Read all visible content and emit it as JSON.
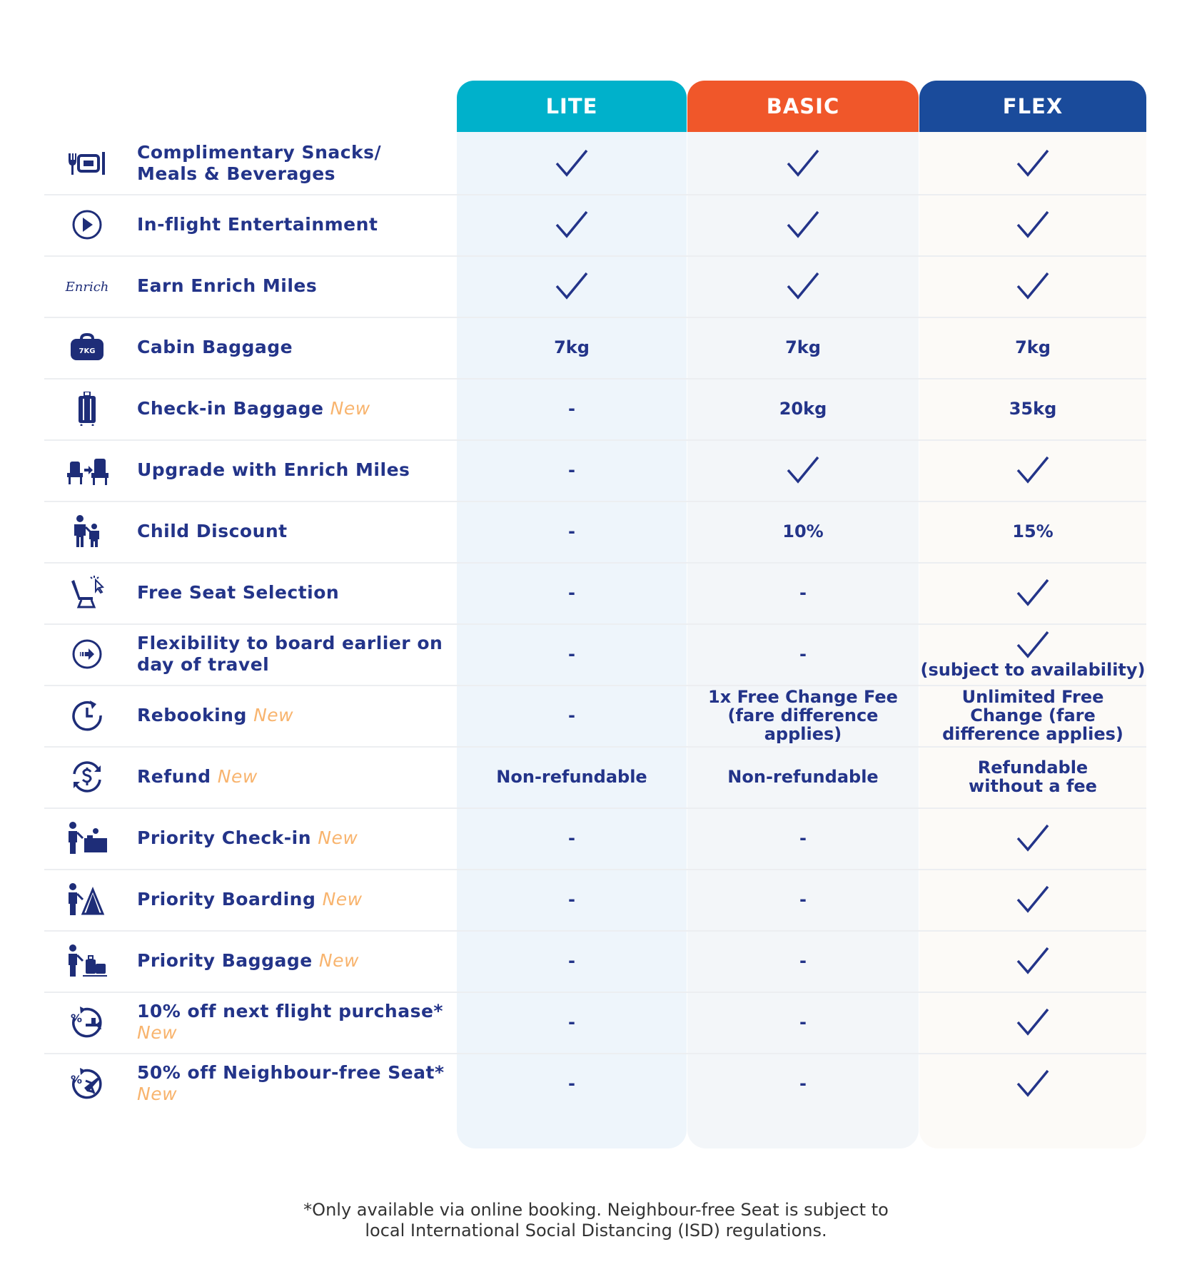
{
  "plans": [
    {
      "name": "LITE",
      "color": "#00b1cb"
    },
    {
      "name": "BASIC",
      "color": "#f0572a"
    },
    {
      "name": "FLEX",
      "color": "#1a4b9b"
    }
  ],
  "new_tag": "New",
  "rows": [
    {
      "icon": "meal-icon",
      "lines": [
        "Complimentary Snacks/",
        "Meals & Beverages"
      ],
      "is_new": false,
      "values": [
        {
          "type": "check"
        },
        {
          "type": "check"
        },
        {
          "type": "check"
        }
      ]
    },
    {
      "icon": "play-icon",
      "lines": [
        "In-flight Entertainment"
      ],
      "is_new": false,
      "values": [
        {
          "type": "check"
        },
        {
          "type": "check"
        },
        {
          "type": "check"
        }
      ]
    },
    {
      "icon": "enrich-logo",
      "logo_text": "Enrich",
      "lines": [
        "Earn Enrich Miles"
      ],
      "is_new": false,
      "values": [
        {
          "type": "check"
        },
        {
          "type": "check"
        },
        {
          "type": "check"
        }
      ]
    },
    {
      "icon": "cabin-bag-icon",
      "icon_text": "7KG",
      "lines": [
        "Cabin Baggage"
      ],
      "is_new": false,
      "values": [
        {
          "type": "text",
          "text": "7kg"
        },
        {
          "type": "text",
          "text": "7kg"
        },
        {
          "type": "text",
          "text": "7kg"
        }
      ]
    },
    {
      "icon": "suitcase-icon",
      "lines": [
        "Check-in Baggage"
      ],
      "is_new": true,
      "values": [
        {
          "type": "text",
          "text": "-"
        },
        {
          "type": "text",
          "text": "20kg"
        },
        {
          "type": "text",
          "text": "35kg"
        }
      ]
    },
    {
      "icon": "seat-upgrade-icon",
      "lines": [
        "Upgrade with Enrich Miles"
      ],
      "is_new": false,
      "values": [
        {
          "type": "text",
          "text": "-"
        },
        {
          "type": "check"
        },
        {
          "type": "check"
        }
      ]
    },
    {
      "icon": "family-icon",
      "lines": [
        "Child Discount"
      ],
      "is_new": false,
      "values": [
        {
          "type": "text",
          "text": "-"
        },
        {
          "type": "text",
          "text": "10%"
        },
        {
          "type": "text",
          "text": "15%"
        }
      ]
    },
    {
      "icon": "seat-select-icon",
      "lines": [
        "Free Seat Selection"
      ],
      "is_new": false,
      "values": [
        {
          "type": "text",
          "text": "-"
        },
        {
          "type": "text",
          "text": "-"
        },
        {
          "type": "check"
        }
      ]
    },
    {
      "icon": "board-earlier-icon",
      "lines": [
        "Flexibility to board earlier on",
        "day of travel"
      ],
      "is_new": false,
      "values": [
        {
          "type": "text",
          "text": "-"
        },
        {
          "type": "text",
          "text": "-"
        },
        {
          "type": "check",
          "note": "(subject to availability)"
        }
      ]
    },
    {
      "icon": "clock-icon",
      "lines": [
        "Rebooking"
      ],
      "is_new": true,
      "values": [
        {
          "type": "text",
          "text": "-"
        },
        {
          "type": "text",
          "lines": [
            "1x Free Change Fee",
            "(fare difference",
            "applies)"
          ]
        },
        {
          "type": "text",
          "lines": [
            "Unlimited Free",
            "Change (fare",
            "difference applies)"
          ]
        }
      ]
    },
    {
      "icon": "refund-icon",
      "lines": [
        "Refund"
      ],
      "is_new": true,
      "values": [
        {
          "type": "text",
          "text": "Non-refundable"
        },
        {
          "type": "text",
          "text": "Non-refundable"
        },
        {
          "type": "text",
          "lines": [
            "Refundable",
            "without a fee"
          ]
        }
      ]
    },
    {
      "icon": "priority-checkin-icon",
      "lines": [
        "Priority Check-in"
      ],
      "is_new": true,
      "values": [
        {
          "type": "text",
          "text": "-"
        },
        {
          "type": "text",
          "text": "-"
        },
        {
          "type": "check"
        }
      ]
    },
    {
      "icon": "priority-boarding-icon",
      "lines": [
        "Priority Boarding"
      ],
      "is_new": true,
      "values": [
        {
          "type": "text",
          "text": "-"
        },
        {
          "type": "text",
          "text": "-"
        },
        {
          "type": "check"
        }
      ]
    },
    {
      "icon": "priority-baggage-icon",
      "lines": [
        "Priority Baggage"
      ],
      "is_new": true,
      "values": [
        {
          "type": "text",
          "text": "-"
        },
        {
          "type": "text",
          "text": "-"
        },
        {
          "type": "check"
        }
      ]
    },
    {
      "icon": "discount-flight-icon",
      "lines": [
        "10% off next flight purchase*"
      ],
      "new_on_own_line": true,
      "is_new": true,
      "values": [
        {
          "type": "text",
          "text": "-"
        },
        {
          "type": "text",
          "text": "-"
        },
        {
          "type": "check"
        }
      ]
    },
    {
      "icon": "neighbour-seat-icon",
      "lines": [
        "50% off Neighbour-free Seat*"
      ],
      "new_on_own_line": true,
      "is_new": true,
      "values": [
        {
          "type": "text",
          "text": "-"
        },
        {
          "type": "text",
          "text": "-"
        },
        {
          "type": "check"
        }
      ]
    }
  ],
  "footnote": [
    "*Only available via online booking. Neighbour-free Seat is subject to",
    "local International Social Distancing (ISD) regulations."
  ],
  "colors": {
    "text": "#233489",
    "new_tag": "#f8b46e",
    "check": "#233489"
  }
}
